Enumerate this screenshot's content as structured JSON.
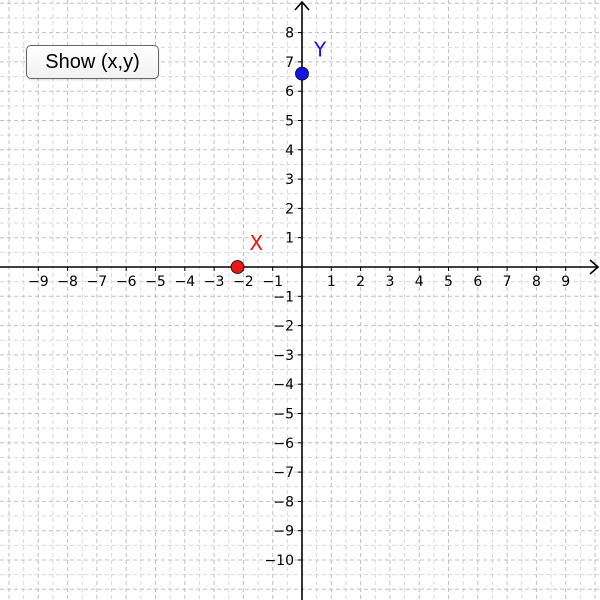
{
  "app": {
    "show_button_label": "Show (x,y)"
  },
  "graph": {
    "x_range": [
      -10,
      10
    ],
    "y_range": [
      -11,
      9
    ],
    "x_ticks": [
      "−9",
      "−8",
      "−7",
      "−6",
      "−5",
      "−4",
      "−3",
      "−2",
      "−1",
      "1",
      "2",
      "3",
      "4",
      "5",
      "6",
      "7",
      "8",
      "9"
    ],
    "y_ticks_pos": [
      "1",
      "2",
      "3",
      "4",
      "5",
      "6",
      "7",
      "8"
    ],
    "y_ticks_neg": [
      "−1",
      "−2",
      "−3",
      "−4",
      "−5",
      "−6",
      "−7",
      "−8",
      "−9",
      "−10"
    ],
    "grid": true,
    "axis_color": "#000000",
    "grid_color": "#c0c0c0"
  },
  "points": [
    {
      "label": "X",
      "x": -2.2,
      "y": 0,
      "color": "#e51919"
    },
    {
      "label": "Y",
      "x": 0,
      "y": 6.6,
      "color": "#1515e5"
    }
  ]
}
